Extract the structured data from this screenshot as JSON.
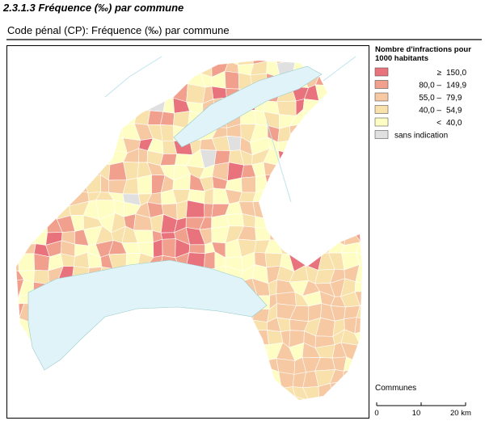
{
  "header": {
    "title": "2.3.1.3 Fréquence (‰) par commune",
    "subtitle": "Code pénal (CP): Fréquence (‰) par commune"
  },
  "legend": {
    "title": "Nombre d'infractions pour 1000 habitants",
    "items": [
      {
        "symbol": "≥",
        "label": "150,0",
        "color": "#e8737c"
      },
      {
        "symbol": "80,0  –",
        "label": "149,9",
        "color": "#f0a08c"
      },
      {
        "symbol": "55,0  –",
        "label": "79,9",
        "color": "#f6c9a2"
      },
      {
        "symbol": "40,0  –",
        "label": "54,9",
        "color": "#f9e1ab"
      },
      {
        "symbol": "<",
        "label": "40,0",
        "color": "#fefec4"
      },
      {
        "symbol": "",
        "label": "sans indication",
        "color": "#e0e0e0"
      }
    ]
  },
  "layer": "Communes",
  "scale": [
    "0",
    "10",
    "20 km"
  ]
}
